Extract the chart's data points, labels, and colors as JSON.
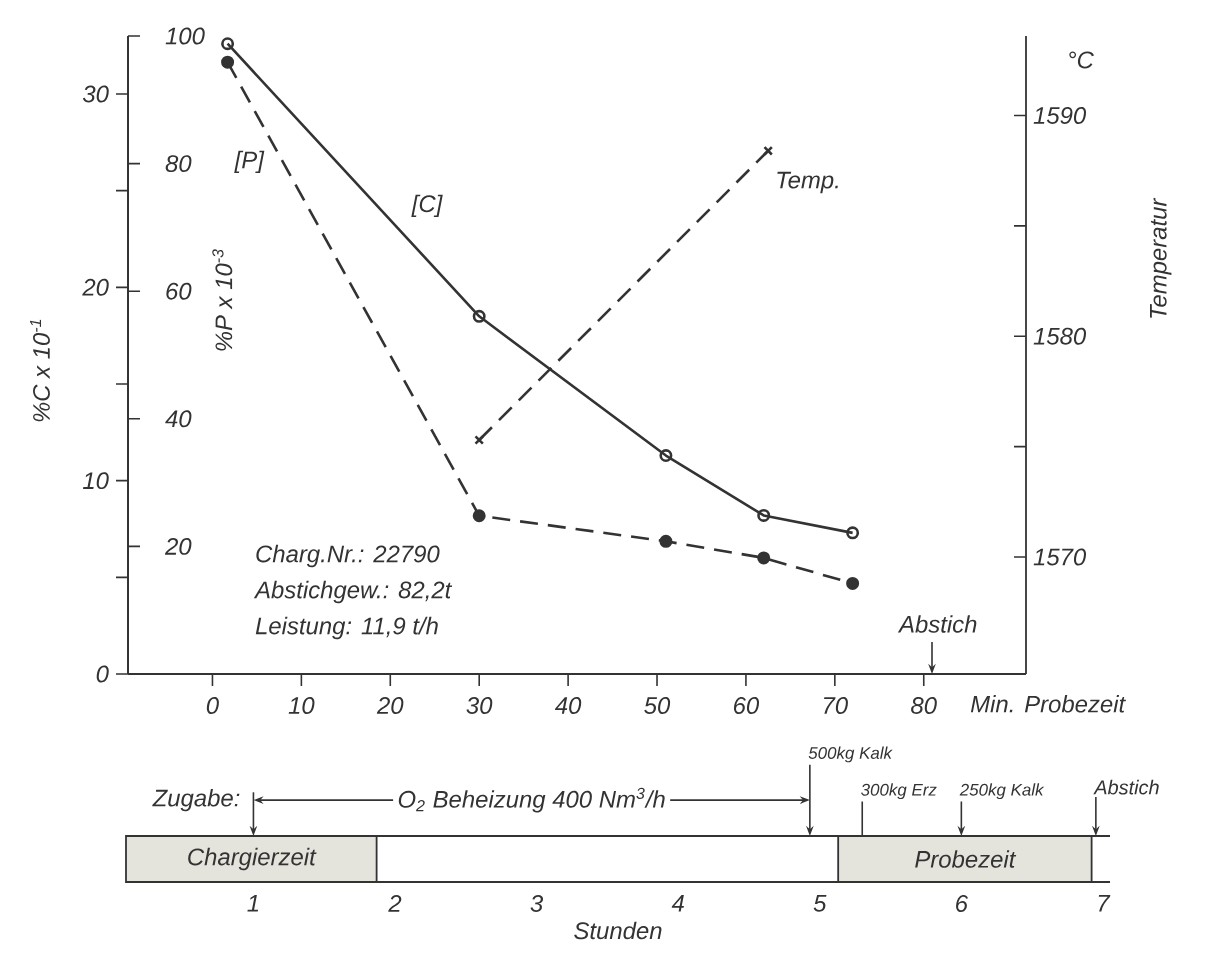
{
  "chart_data": [
    {
      "type": "line",
      "xlabel": "Min. Probezeit",
      "ylabel": "%C x 10$^{-1}$",
      "y2label": "%P x 10$^{-3}$",
      "y3label": "Temperatur",
      "xlim": [
        -9.5,
        91.5
      ],
      "xticks": [
        0,
        10,
        20,
        30,
        40,
        50,
        60,
        70,
        80
      ],
      "ylim": [
        0,
        33
      ],
      "yticks": [
        0,
        {
          "value": 5,
          "label": null
        },
        10,
        {
          "value": 15,
          "label": null
        },
        20,
        {
          "value": 25,
          "label": null
        },
        30
      ],
      "y2lim": [
        0,
        100
      ],
      "y2ticks": [
        20,
        40,
        60,
        80,
        100
      ],
      "y3lim": [
        1564.7,
        1593.6
      ],
      "y3ticks": [
        1570,
        {
          "value": 1575,
          "label": null
        },
        1580,
        {
          "value": 1585,
          "label": null
        },
        1590
      ],
      "series": [
        {
          "name": "[C]",
          "axis": "y",
          "color": "#333333",
          "marker": "circle",
          "line_style": "solid",
          "x": [
            1.7,
            30,
            51,
            62,
            72
          ],
          "values": [
            32.6,
            18.5,
            11.3,
            8.2,
            7.3
          ]
        },
        {
          "name": "[P]",
          "axis": "y2",
          "color": "#333333",
          "marker": "circle",
          "line_style": "dashed",
          "x": [
            1.7,
            30,
            51,
            62,
            72
          ],
          "values": [
            95.9,
            24.8,
            20.8,
            18.2,
            14.2
          ]
        },
        {
          "name": "Temp.",
          "axis": "y3",
          "color": "#333333",
          "marker": "cross",
          "line_style": "dashed",
          "x": [
            30,
            62.5
          ],
          "values": [
            1575.3,
            1588.4
          ]
        }
      ],
      "annotations": [
        "Charg.Nr.: 22790",
        "Abstichgew.: 82,2t",
        "Leistung: 11,9 t/h",
        "°C",
        "Abstich"
      ]
    },
    {
      "type": "bar",
      "orientation": "horizontal",
      "xlabel": "Stunden",
      "xlim": [
        0.1,
        7.05
      ],
      "xticks": [
        1,
        2,
        3,
        4,
        5,
        6,
        7
      ],
      "categories": [
        null
      ],
      "legend": "top left",
      "series": [
        {
          "name": "Chargierzeit",
          "color": "#e4e4dc",
          "base": [
            0.1
          ],
          "values": [
            1.77
          ]
        },
        {
          "name": "Probezeit",
          "color": "#e4e4dc",
          "base": [
            5.13
          ],
          "values": [
            1.79
          ]
        }
      ],
      "annotations": [
        "Zugabe:",
        "O$_{2}$ Beheizung 400 Nm$^{3}$/h",
        "500kg Kalk",
        "300kg Erz",
        "250kg Kalk",
        "Abstich"
      ]
    }
  ]
}
